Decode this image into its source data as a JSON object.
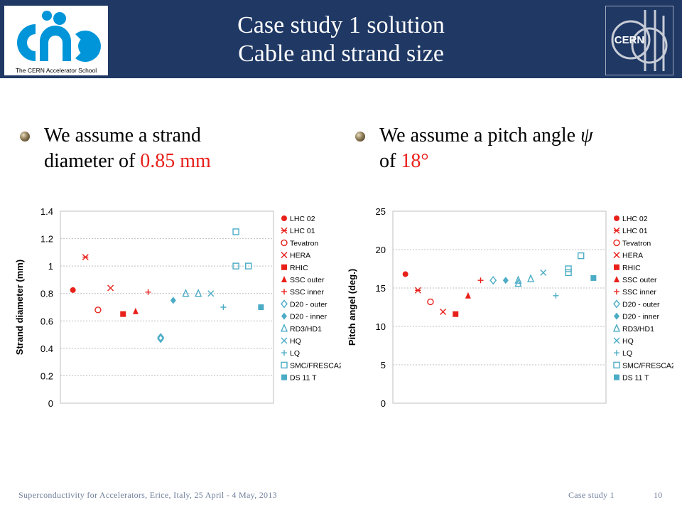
{
  "header": {
    "title_line1": "Case study 1 solution",
    "title_line2": "Cable and strand size",
    "logo_left_caption": "The CERN Accelerator School",
    "logo_right_text": "CERN"
  },
  "bullets": {
    "left": {
      "line1": "We assume a strand",
      "line2_prefix": "diameter of ",
      "highlight": "0.85 mm"
    },
    "right": {
      "line1_prefix": "We assume a pitch angle ",
      "symbol": "ψ",
      "line2_prefix": "of ",
      "highlight": "18°"
    }
  },
  "footer": {
    "left": "Superconductivity for Accelerators, Erice, Italy, 25 April - 4 May, 2013",
    "center": "Case study 1",
    "page": "10"
  },
  "colors": {
    "red": "#e8201a",
    "blue": "#4bacc6",
    "header_bg": "#1f3864"
  },
  "chart_data": [
    {
      "type": "scatter",
      "title": "",
      "xlabel": "",
      "ylabel": "Strand diameter (mm)",
      "ylim": [
        0,
        1.4
      ],
      "yticks": [
        "0",
        "0.2",
        "0.4",
        "0.6",
        "0.8",
        "1",
        "1.2",
        "1.4"
      ],
      "grid": true,
      "legend_position": "right",
      "series": [
        {
          "name": "LHC 02",
          "marker": "circle",
          "color": "#e8201a",
          "points": [
            [
              1,
              0.825
            ]
          ]
        },
        {
          "name": "LHC 01",
          "marker": "asterisk",
          "color": "#e8201a",
          "points": [
            [
              2,
              1.065
            ]
          ]
        },
        {
          "name": "Tevatron",
          "marker": "circle-open",
          "color": "#e8201a",
          "points": [
            [
              3,
              0.68
            ]
          ]
        },
        {
          "name": "HERA",
          "marker": "x",
          "color": "#e8201a",
          "points": [
            [
              4,
              0.84
            ]
          ]
        },
        {
          "name": "RHIC",
          "marker": "square",
          "color": "#e8201a",
          "points": [
            [
              5,
              0.65
            ]
          ]
        },
        {
          "name": "SSC outer",
          "marker": "triangle",
          "color": "#e8201a",
          "points": [
            [
              6,
              0.67
            ]
          ]
        },
        {
          "name": "SSC inner",
          "marker": "plus",
          "color": "#e8201a",
          "points": [
            [
              7,
              0.81
            ]
          ]
        },
        {
          "name": "D20 - outer",
          "marker": "diamond-open",
          "color": "#4bacc6",
          "points": [
            [
              8,
              0.48
            ],
            [
              8,
              0.47
            ]
          ]
        },
        {
          "name": "D20 - inner",
          "marker": "diamond",
          "color": "#4bacc6",
          "points": [
            [
              9,
              0.75
            ]
          ]
        },
        {
          "name": "RD3/HD1",
          "marker": "triangle-open",
          "color": "#4bacc6",
          "points": [
            [
              10,
              0.8
            ],
            [
              11,
              0.8
            ]
          ]
        },
        {
          "name": "HQ",
          "marker": "x",
          "color": "#4bacc6",
          "points": [
            [
              12,
              0.8
            ]
          ]
        },
        {
          "name": "LQ",
          "marker": "plus",
          "color": "#4bacc6",
          "points": [
            [
              13,
              0.7
            ]
          ]
        },
        {
          "name": "SMC/FRESCA2",
          "marker": "square-open",
          "color": "#4bacc6",
          "points": [
            [
              14,
              1.25
            ],
            [
              14,
              1.0
            ],
            [
              15,
              1.0
            ]
          ]
        },
        {
          "name": "DS 11 T",
          "marker": "square",
          "color": "#4bacc6",
          "points": [
            [
              16,
              0.7
            ]
          ]
        }
      ]
    },
    {
      "type": "scatter",
      "title": "",
      "xlabel": "",
      "ylabel": "Pitch angel (deg.)",
      "ylim": [
        0,
        25
      ],
      "yticks": [
        "0",
        "5",
        "10",
        "15",
        "20",
        "25"
      ],
      "grid": true,
      "legend_position": "right",
      "series": [
        {
          "name": "LHC 02",
          "marker": "circle",
          "color": "#e8201a",
          "points": [
            [
              1,
              16.8
            ]
          ]
        },
        {
          "name": "LHC 01",
          "marker": "asterisk",
          "color": "#e8201a",
          "points": [
            [
              2,
              14.7
            ]
          ]
        },
        {
          "name": "Tevatron",
          "marker": "circle-open",
          "color": "#e8201a",
          "points": [
            [
              3,
              13.2
            ]
          ]
        },
        {
          "name": "HERA",
          "marker": "x",
          "color": "#e8201a",
          "points": [
            [
              4,
              11.9
            ]
          ]
        },
        {
          "name": "RHIC",
          "marker": "square",
          "color": "#e8201a",
          "points": [
            [
              5,
              11.6
            ]
          ]
        },
        {
          "name": "SSC outer",
          "marker": "triangle",
          "color": "#e8201a",
          "points": [
            [
              6,
              14.0
            ]
          ]
        },
        {
          "name": "SSC inner",
          "marker": "plus",
          "color": "#e8201a",
          "points": [
            [
              7,
              16.0
            ]
          ]
        },
        {
          "name": "D20 - outer",
          "marker": "diamond-open",
          "color": "#4bacc6",
          "points": [
            [
              8,
              16.0
            ]
          ]
        },
        {
          "name": "D20 - inner",
          "marker": "diamond",
          "color": "#4bacc6",
          "points": [
            [
              9,
              16.0
            ]
          ]
        },
        {
          "name": "RD3/HD1",
          "marker": "triangle-open",
          "color": "#4bacc6",
          "points": [
            [
              10,
              16.0
            ],
            [
              10,
              15.6
            ],
            [
              11,
              16.2
            ]
          ]
        },
        {
          "name": "HQ",
          "marker": "x",
          "color": "#4bacc6",
          "points": [
            [
              12,
              17.0
            ]
          ]
        },
        {
          "name": "LQ",
          "marker": "plus",
          "color": "#4bacc6",
          "points": [
            [
              13,
              14.0
            ]
          ]
        },
        {
          "name": "SMC/FRESCA2",
          "marker": "square-open",
          "color": "#4bacc6",
          "points": [
            [
              14,
              17.5
            ],
            [
              14,
              17.0
            ],
            [
              15,
              19.2
            ]
          ]
        },
        {
          "name": "DS 11 T",
          "marker": "square",
          "color": "#4bacc6",
          "points": [
            [
              16,
              16.3
            ]
          ]
        }
      ]
    }
  ]
}
